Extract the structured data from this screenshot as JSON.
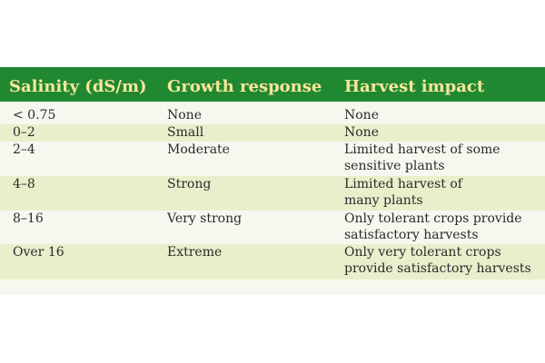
{
  "table": {
    "headers": [
      "Salinity (dS/m)",
      "Growth response",
      "Harvest impact"
    ],
    "rows": [
      {
        "salinity": "< 0.75",
        "growth": "None",
        "harvest": [
          "None"
        ]
      },
      {
        "salinity": "0–2",
        "growth": "Small",
        "harvest": [
          "None"
        ]
      },
      {
        "salinity": "2–4",
        "growth": "Moderate",
        "harvest": [
          "Limited harvest of some",
          "sensitive plants"
        ]
      },
      {
        "salinity": "4–8",
        "growth": "Strong",
        "harvest": [
          "Limited harvest of",
          "many plants"
        ]
      },
      {
        "salinity": "8–16",
        "growth": "Very strong",
        "harvest": [
          "Only tolerant crops provide",
          "satisfactory harvests"
        ]
      },
      {
        "salinity": "Over 16",
        "growth": "Extreme",
        "harvest": [
          "Only very tolerant crops",
          "provide satisfactory harvests"
        ]
      }
    ]
  },
  "colors": {
    "header_bg": "#218832",
    "header_text": "#f7e79a",
    "row_shade": "#e9efcb",
    "card_bg": "#f8f7ef"
  }
}
